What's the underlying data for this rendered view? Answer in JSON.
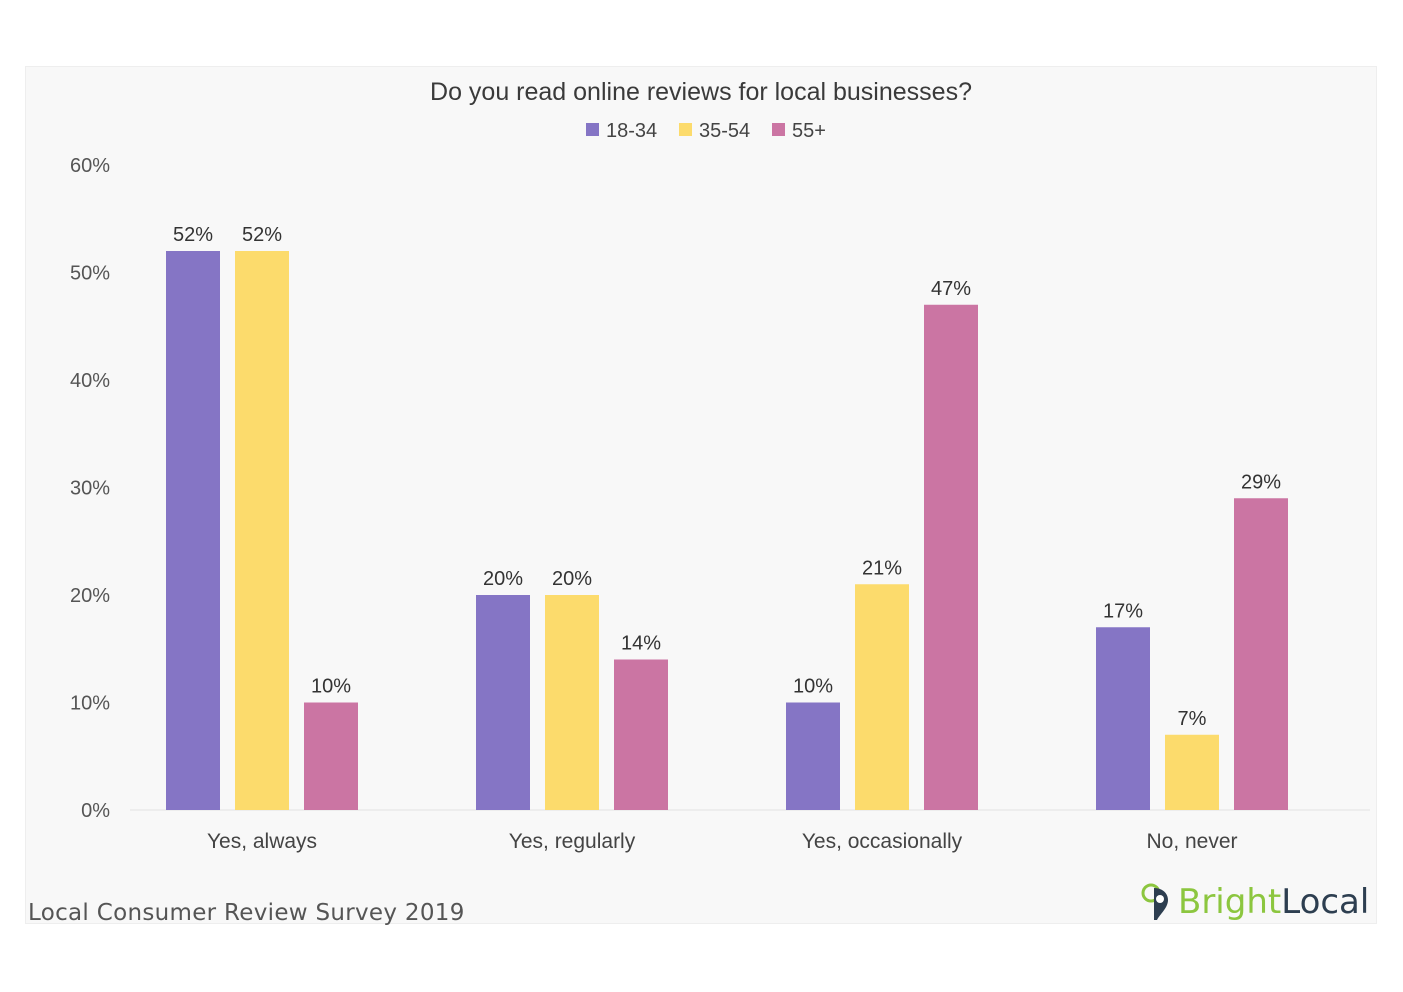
{
  "chart_data": {
    "type": "bar",
    "title": "Do you read online reviews for local businesses?",
    "categories": [
      "Yes, always",
      "Yes, regularly",
      "Yes, occasionally",
      "No, never"
    ],
    "series": [
      {
        "name": "18-34",
        "color": "#8575c5",
        "values": [
          52,
          20,
          10,
          17
        ],
        "labels": [
          "52%",
          "20%",
          "10%",
          "17%"
        ]
      },
      {
        "name": "35-54",
        "color": "#fcdb6c",
        "values": [
          52,
          20,
          21,
          7
        ],
        "labels": [
          "52%",
          "20%",
          "21%",
          "7%"
        ]
      },
      {
        "name": "55+",
        "color": "#cb75a3",
        "values": [
          10,
          14,
          47,
          29
        ],
        "labels": [
          "10%",
          "14%",
          "47%",
          "29%"
        ]
      }
    ],
    "ylim": [
      0,
      60
    ],
    "yticks": [
      0,
      10,
      20,
      30,
      40,
      50,
      60
    ],
    "ytick_labels": [
      "0%",
      "10%",
      "20%",
      "30%",
      "40%",
      "50%",
      "60%"
    ],
    "legend_position": "top-center",
    "grid": false
  },
  "footer": {
    "source": "Local Consumer Review Survey 2019",
    "brand_part1": "Bright",
    "brand_part2": "Local"
  }
}
